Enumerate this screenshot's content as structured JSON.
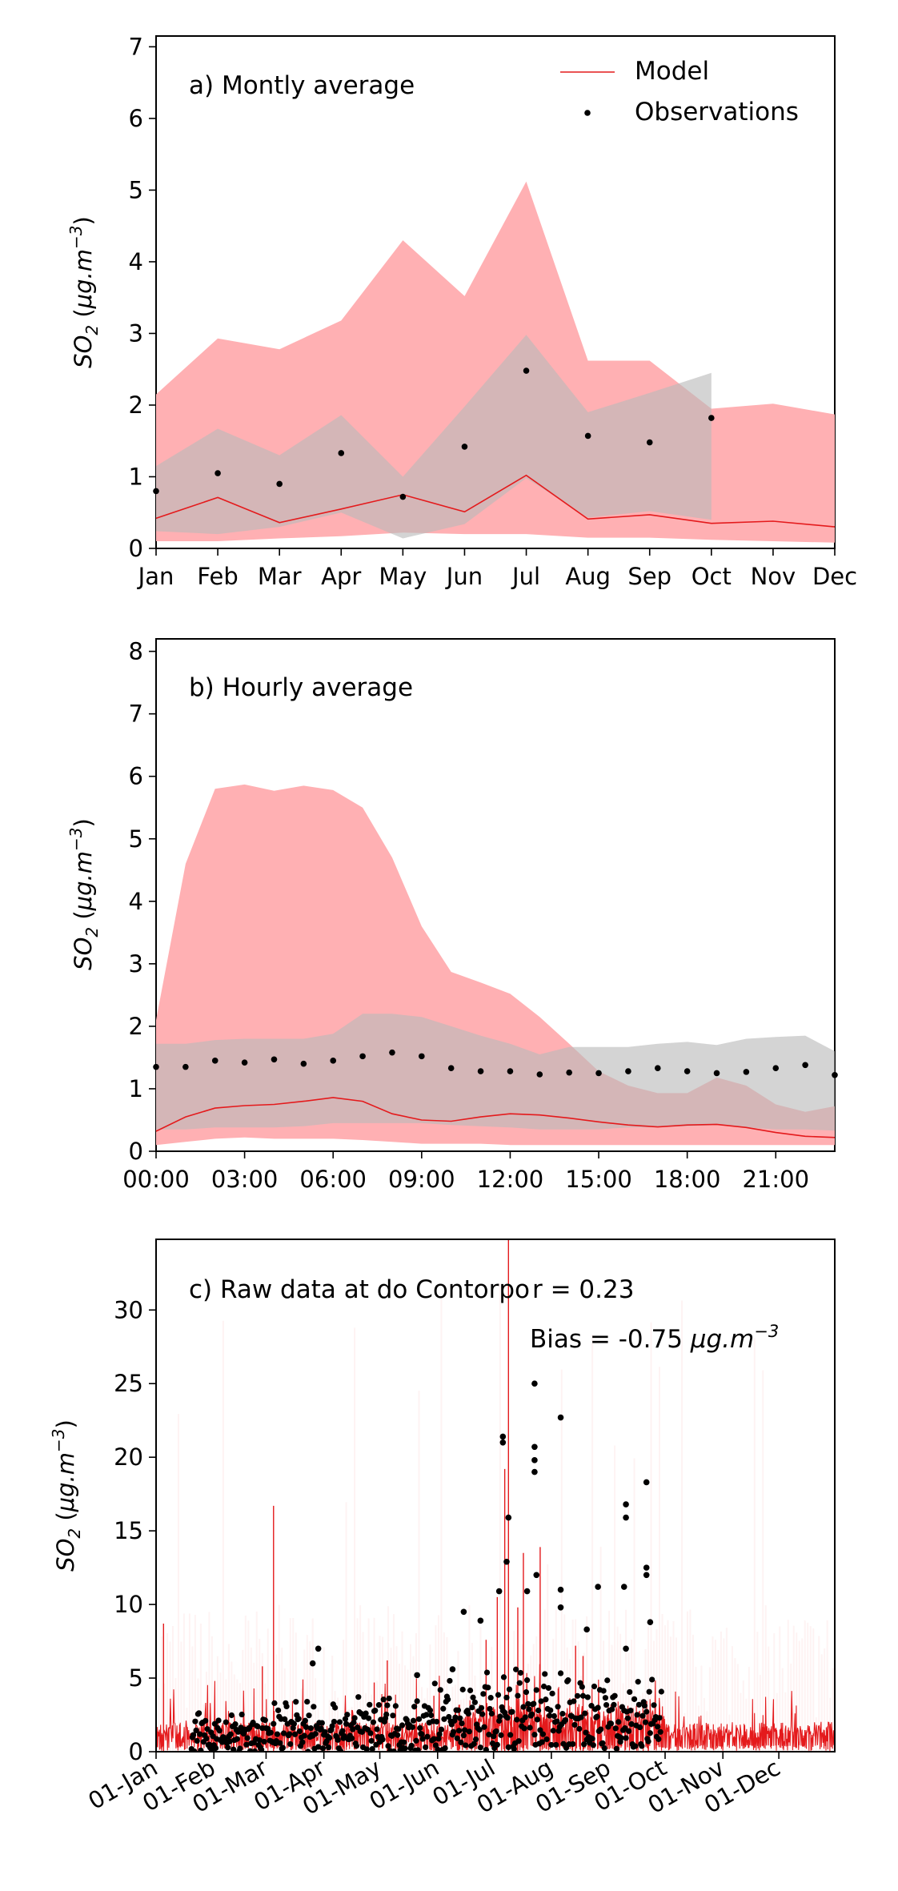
{
  "colors": {
    "model": "#e41a1c",
    "model_band": "#ffb0b3",
    "obs": "#000000",
    "obs_band": "#b9b9b9"
  },
  "ylabel_prefix": "SO",
  "ylabel_sub": "2",
  "ylabel_unit_open": " (",
  "ylabel_unit_mu": "μg.m",
  "ylabel_unit_exp": "−3",
  "ylabel_unit_close": ")",
  "legend": {
    "model": "Model",
    "obs": "Observations",
    "placement": "top-right"
  },
  "chart_data": [
    {
      "id": "a",
      "type": "line",
      "title": "a) Montly average",
      "categories": [
        "Jan",
        "Feb",
        "Mar",
        "Apr",
        "May",
        "Jun",
        "Jul",
        "Aug",
        "Sep",
        "Oct",
        "Nov",
        "Dec"
      ],
      "ylim": [
        0,
        7.15
      ],
      "yticks": [
        0,
        1,
        2,
        3,
        4,
        5,
        6,
        7
      ],
      "series": [
        {
          "name": "Model",
          "kind": "line",
          "values": [
            0.42,
            0.71,
            0.36,
            0.55,
            0.75,
            0.51,
            1.02,
            0.41,
            0.47,
            0.35,
            0.38,
            0.3
          ]
        },
        {
          "name": "Observations",
          "kind": "scatter",
          "values": [
            0.8,
            1.05,
            0.9,
            1.33,
            0.72,
            1.42,
            2.48,
            1.57,
            1.48,
            1.82,
            null,
            null
          ]
        }
      ],
      "model_band": {
        "upper": [
          2.15,
          2.93,
          2.78,
          3.18,
          4.3,
          3.52,
          5.12,
          2.62,
          2.62,
          1.95,
          2.02,
          1.87
        ],
        "lower": [
          0.1,
          0.1,
          0.14,
          0.17,
          0.22,
          0.2,
          0.2,
          0.15,
          0.15,
          0.12,
          0.1,
          0.08
        ]
      },
      "obs_band": {
        "x_count": 10,
        "upper": [
          1.15,
          1.67,
          1.3,
          1.86,
          1.0,
          1.98,
          2.98,
          1.9,
          2.17,
          2.45
        ],
        "lower": [
          0.24,
          0.2,
          0.3,
          0.5,
          0.14,
          0.34,
          0.98,
          0.43,
          0.52,
          0.4
        ]
      }
    },
    {
      "id": "b",
      "type": "line",
      "title": "b) Hourly average",
      "x": [
        0,
        1,
        2,
        3,
        4,
        5,
        6,
        7,
        8,
        9,
        10,
        11,
        12,
        13,
        14,
        15,
        16,
        17,
        18,
        19,
        20,
        21,
        22,
        23
      ],
      "xlim": [
        0,
        23
      ],
      "xticks": [
        0,
        3,
        6,
        9,
        12,
        15,
        18,
        21
      ],
      "xtick_labels": [
        "00:00",
        "03:00",
        "06:00",
        "09:00",
        "12:00",
        "15:00",
        "18:00",
        "21:00"
      ],
      "ylim": [
        0,
        8.2
      ],
      "yticks": [
        0,
        1,
        2,
        3,
        4,
        5,
        6,
        7,
        8
      ],
      "series": [
        {
          "name": "Model",
          "kind": "line",
          "values": [
            0.32,
            0.55,
            0.69,
            0.73,
            0.75,
            0.8,
            0.86,
            0.8,
            0.6,
            0.5,
            0.48,
            0.55,
            0.6,
            0.58,
            0.53,
            0.47,
            0.42,
            0.39,
            0.42,
            0.43,
            0.38,
            0.3,
            0.24,
            0.22
          ]
        },
        {
          "name": "Observations",
          "kind": "scatter",
          "values": [
            1.35,
            1.35,
            1.45,
            1.42,
            1.47,
            1.4,
            1.45,
            1.52,
            1.58,
            1.52,
            1.33,
            1.28,
            1.28,
            1.23,
            1.26,
            1.25,
            1.28,
            1.33,
            1.28,
            1.25,
            1.27,
            1.33,
            1.38,
            1.22
          ]
        }
      ],
      "model_band": {
        "upper": [
          2.1,
          4.6,
          5.8,
          5.87,
          5.77,
          5.85,
          5.78,
          5.5,
          4.7,
          3.6,
          2.87,
          2.7,
          2.52,
          2.15,
          1.72,
          1.28,
          1.05,
          0.93,
          0.93,
          1.18,
          1.05,
          0.75,
          0.63,
          0.72
        ],
        "lower": [
          0.1,
          0.15,
          0.2,
          0.22,
          0.2,
          0.2,
          0.2,
          0.18,
          0.15,
          0.12,
          0.12,
          0.12,
          0.1,
          0.1,
          0.1,
          0.1,
          0.1,
          0.1,
          0.1,
          0.1,
          0.1,
          0.1,
          0.1,
          0.1
        ]
      },
      "obs_band": {
        "upper": [
          1.72,
          1.72,
          1.78,
          1.8,
          1.8,
          1.8,
          1.88,
          2.2,
          2.2,
          2.15,
          2.0,
          1.85,
          1.72,
          1.55,
          1.67,
          1.67,
          1.67,
          1.72,
          1.75,
          1.7,
          1.8,
          1.83,
          1.85,
          1.6
        ],
        "lower": [
          0.35,
          0.35,
          0.38,
          0.38,
          0.38,
          0.4,
          0.45,
          0.45,
          0.45,
          0.45,
          0.42,
          0.4,
          0.38,
          0.35,
          0.35,
          0.35,
          0.38,
          0.38,
          0.4,
          0.42,
          0.38,
          0.35,
          0.35,
          0.33
        ]
      }
    },
    {
      "id": "c",
      "type": "scatter",
      "title": "c) Raw data at  do Contorpo",
      "annotation_r": "r = 0.23",
      "annotation_bias_label": "Bias = -0.75 ",
      "annotation_bias_unit": "μg.m",
      "annotation_bias_exp": "−3",
      "xlim": [
        1,
        365
      ],
      "xticks": [
        1,
        32,
        60,
        91,
        121,
        152,
        182,
        213,
        244,
        274,
        305,
        335
      ],
      "xtick_labels": [
        "01-Jan",
        "01-Feb",
        "01-Mar",
        "01-Apr",
        "01-May",
        "01-Jun",
        "01-Jul",
        "01-Aug",
        "01-Sep",
        "01-Oct",
        "01-Nov",
        "01-Dec"
      ],
      "ylim": [
        0,
        34.8
      ],
      "yticks": [
        0,
        5,
        10,
        15,
        20,
        25,
        30
      ],
      "model_spikes": [
        {
          "x": 5,
          "y": 8.7
        },
        {
          "x": 58,
          "y": 5.8
        },
        {
          "x": 64,
          "y": 16.7
        },
        {
          "x": 118,
          "y": 4.7
        },
        {
          "x": 125,
          "y": 6.2
        },
        {
          "x": 150,
          "y": 3.8
        },
        {
          "x": 178,
          "y": 7.6
        },
        {
          "x": 184,
          "y": 10.5
        },
        {
          "x": 188,
          "y": 19.2
        },
        {
          "x": 190,
          "y": 34.8
        },
        {
          "x": 195,
          "y": 9.8
        },
        {
          "x": 198,
          "y": 13.5
        },
        {
          "x": 207,
          "y": 13.9
        },
        {
          "x": 226,
          "y": 7.2
        },
        {
          "x": 230,
          "y": 6.5
        },
        {
          "x": 265,
          "y": 2.7
        }
      ],
      "obs_highlights": [
        {
          "x": 85,
          "y": 6.0
        },
        {
          "x": 88,
          "y": 7.0
        },
        {
          "x": 141,
          "y": 5.2
        },
        {
          "x": 160,
          "y": 5.6
        },
        {
          "x": 175,
          "y": 8.9
        },
        {
          "x": 187,
          "y": 21.0
        },
        {
          "x": 187,
          "y": 21.4
        },
        {
          "x": 185,
          "y": 10.9
        },
        {
          "x": 190,
          "y": 15.9
        },
        {
          "x": 189,
          "y": 12.9
        },
        {
          "x": 200,
          "y": 10.9
        },
        {
          "x": 204,
          "y": 25.0
        },
        {
          "x": 204,
          "y": 20.7
        },
        {
          "x": 204,
          "y": 19.8
        },
        {
          "x": 204,
          "y": 19.0
        },
        {
          "x": 205,
          "y": 12.0
        },
        {
          "x": 218,
          "y": 22.7
        },
        {
          "x": 218,
          "y": 11.0
        },
        {
          "x": 218,
          "y": 9.8
        },
        {
          "x": 238,
          "y": 11.2
        },
        {
          "x": 232,
          "y": 8.3
        },
        {
          "x": 253,
          "y": 16.8
        },
        {
          "x": 253,
          "y": 15.9
        },
        {
          "x": 252,
          "y": 11.2
        },
        {
          "x": 253,
          "y": 7.0
        },
        {
          "x": 264,
          "y": 18.3
        },
        {
          "x": 264,
          "y": 12.5
        },
        {
          "x": 264,
          "y": 12.0
        },
        {
          "x": 266,
          "y": 8.8
        },
        {
          "x": 166,
          "y": 9.5
        }
      ]
    }
  ]
}
